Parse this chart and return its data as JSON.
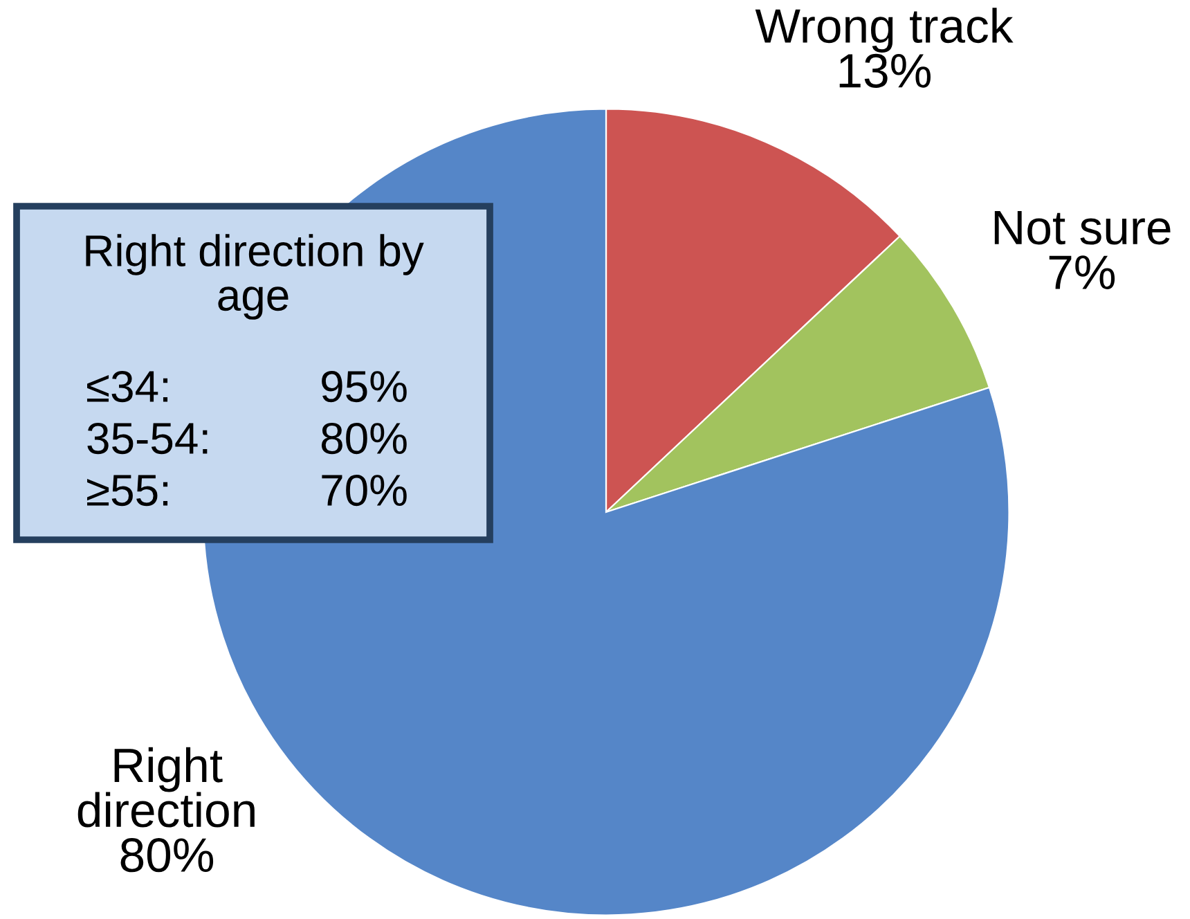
{
  "chart_data": {
    "type": "pie",
    "categories": [
      "Wrong track",
      "Not sure",
      "Right direction"
    ],
    "values": [
      13,
      7,
      80
    ],
    "colors": [
      "#cd5452",
      "#a2c35e",
      "#5586c8"
    ],
    "value_labels": [
      "13%",
      "7%",
      "80%"
    ],
    "annotations": [
      "Right direction by age",
      "≤34:",
      "95%",
      "35-54:",
      "80%",
      "≥55:",
      "70%"
    ]
  }
}
